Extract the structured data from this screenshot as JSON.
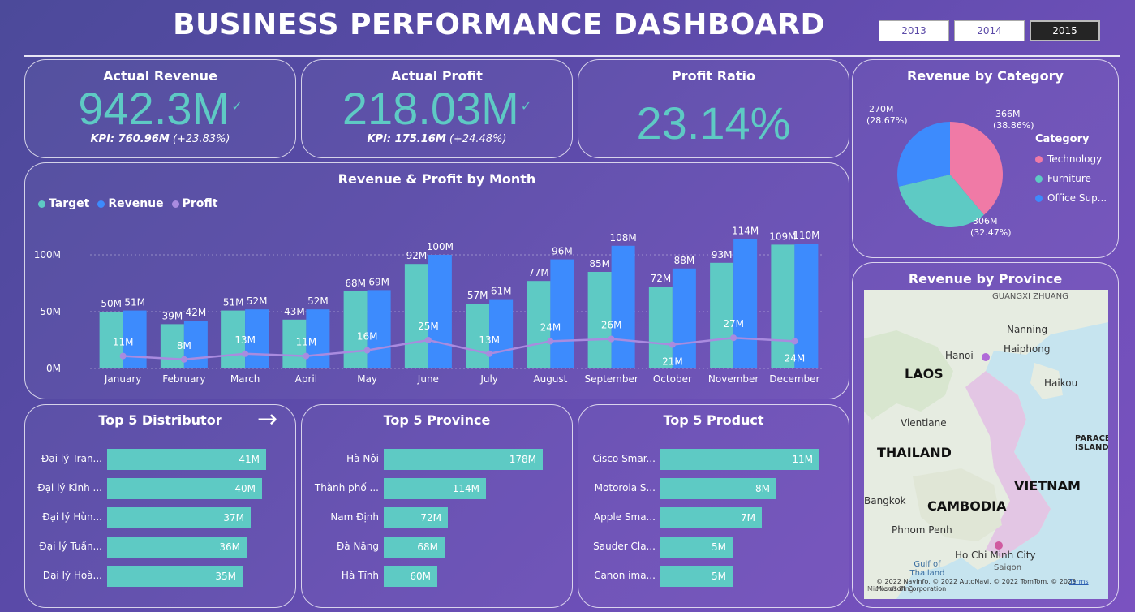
{
  "header": {
    "title": "BUSINESS PERFORMANCE DASHBOARD"
  },
  "years": [
    {
      "label": "2013",
      "active": false
    },
    {
      "label": "2014",
      "active": false
    },
    {
      "label": "2015",
      "active": true
    }
  ],
  "kpis": {
    "revenue": {
      "title": "Actual Revenue",
      "value": "942.3M",
      "check": "✓",
      "kpi_label": "KPI: 760.96M",
      "kpi_delta": "(+23.83%)"
    },
    "profit": {
      "title": "Actual Profit",
      "value": "218.03M",
      "check": "✓",
      "kpi_label": "KPI: 175.16M",
      "kpi_delta": "(+24.48%)"
    },
    "ratio": {
      "title": "Profit Ratio",
      "value": "23.14%"
    }
  },
  "colors": {
    "target": "#5ecac4",
    "revenue": "#3d8bfd",
    "profit": "#a98bdf",
    "technology": "#f07aa6",
    "furniture": "#5ecac4",
    "office": "#3d8bfd"
  },
  "chart_data": [
    {
      "type": "bar",
      "title": "Revenue & Profit by Month",
      "categories": [
        "January",
        "February",
        "March",
        "April",
        "May",
        "June",
        "July",
        "August",
        "September",
        "October",
        "November",
        "December"
      ],
      "series": [
        {
          "name": "Target",
          "values": [
            50,
            39,
            51,
            43,
            68,
            92,
            57,
            77,
            85,
            72,
            93,
            109
          ],
          "labels": [
            "50M",
            "39M",
            "51M",
            "43M",
            "68M",
            "92M",
            "57M",
            "77M",
            "85M",
            "72M",
            "93M",
            "109M"
          ]
        },
        {
          "name": "Revenue",
          "values": [
            51,
            42,
            52,
            52,
            69,
            100,
            61,
            96,
            108,
            88,
            114,
            110
          ],
          "labels": [
            "51M",
            "42M",
            "52M",
            "52M",
            "69M",
            "100M",
            "61M",
            "96M",
            "108M",
            "88M",
            "114M",
            "110M"
          ]
        },
        {
          "name": "Profit",
          "values": [
            11,
            8,
            13,
            11,
            16,
            25,
            13,
            24,
            26,
            21,
            27,
            24
          ],
          "labels": [
            "11M",
            "8M",
            "13M",
            "11M",
            "16M",
            "25M",
            "13M",
            "24M",
            "26M",
            "21M",
            "27M",
            "24M"
          ]
        }
      ],
      "yticks": [
        "0M",
        "50M",
        "100M"
      ],
      "ylim": [
        0,
        125
      ]
    },
    {
      "type": "pie",
      "title": "Revenue by Category",
      "legend_title": "Category",
      "slices": [
        {
          "name": "Technology",
          "value": 366,
          "label": "366M",
          "pct": "(38.86%)"
        },
        {
          "name": "Furniture",
          "value": 306,
          "label": "306M",
          "pct": "(32.47%)"
        },
        {
          "name": "Office Sup...",
          "value": 270,
          "label": "270M",
          "pct": "(28.67%)"
        }
      ]
    }
  ],
  "top_distributor": {
    "title": "Top 5 Distributor",
    "arrow": "→",
    "max": 41,
    "items": [
      {
        "name": "Đại lý Tran...",
        "value": 41,
        "label": "41M"
      },
      {
        "name": "Đại lý Kinh ...",
        "value": 40,
        "label": "40M"
      },
      {
        "name": "Đại lý Hùn...",
        "value": 37,
        "label": "37M"
      },
      {
        "name": "Đại lý Tuấn...",
        "value": 36,
        "label": "36M"
      },
      {
        "name": "Đại lý Hoà...",
        "value": 35,
        "label": "35M"
      }
    ]
  },
  "top_province": {
    "title": "Top 5 Province",
    "max": 178,
    "items": [
      {
        "name": "Hà Nội",
        "value": 178,
        "label": "178M"
      },
      {
        "name": "Thành phố ...",
        "value": 114,
        "label": "114M"
      },
      {
        "name": "Nam Định",
        "value": 72,
        "label": "72M"
      },
      {
        "name": "Đà Nẵng",
        "value": 68,
        "label": "68M"
      },
      {
        "name": "Hà Tĩnh",
        "value": 60,
        "label": "60M"
      }
    ]
  },
  "top_product": {
    "title": "Top 5 Product",
    "max": 11,
    "items": [
      {
        "name": "Cisco Smar...",
        "value": 11,
        "label": "11M"
      },
      {
        "name": "Motorola S...",
        "value": 8,
        "label": "8M"
      },
      {
        "name": "Apple Sma...",
        "value": 7,
        "label": "7M"
      },
      {
        "name": "Sauder Cla...",
        "value": 5,
        "label": "5M"
      },
      {
        "name": "Canon ima...",
        "value": 5,
        "label": "5M"
      }
    ]
  },
  "map": {
    "title": "Revenue by Province",
    "labels": {
      "guangxi": "GUANGXI ZHUANG",
      "nanning": "Nanning",
      "hanoi": "Hanoi",
      "haiphong": "Haiphong",
      "laos": "LAOS",
      "haikou": "Haikou",
      "vientiane": "Vientiane",
      "paracel": "PARACEL ISLANDS",
      "thailand": "THAILAND",
      "vietnam": "VIETNAM",
      "bangkok": "Bangkok",
      "cambodia": "CAMBODIA",
      "phnompenh": "Phnom Penh",
      "gulf": "Gulf of Thailand",
      "hcm": "Ho Chi Minh City",
      "saigon": "Saigon"
    },
    "attribution": "© 2022 NavInfo, © 2022 AutoNavi, © 2022 TomTom, © 2023 Microsoft Corporation",
    "terms": "Terms",
    "bing": "Microsoft Bing"
  }
}
